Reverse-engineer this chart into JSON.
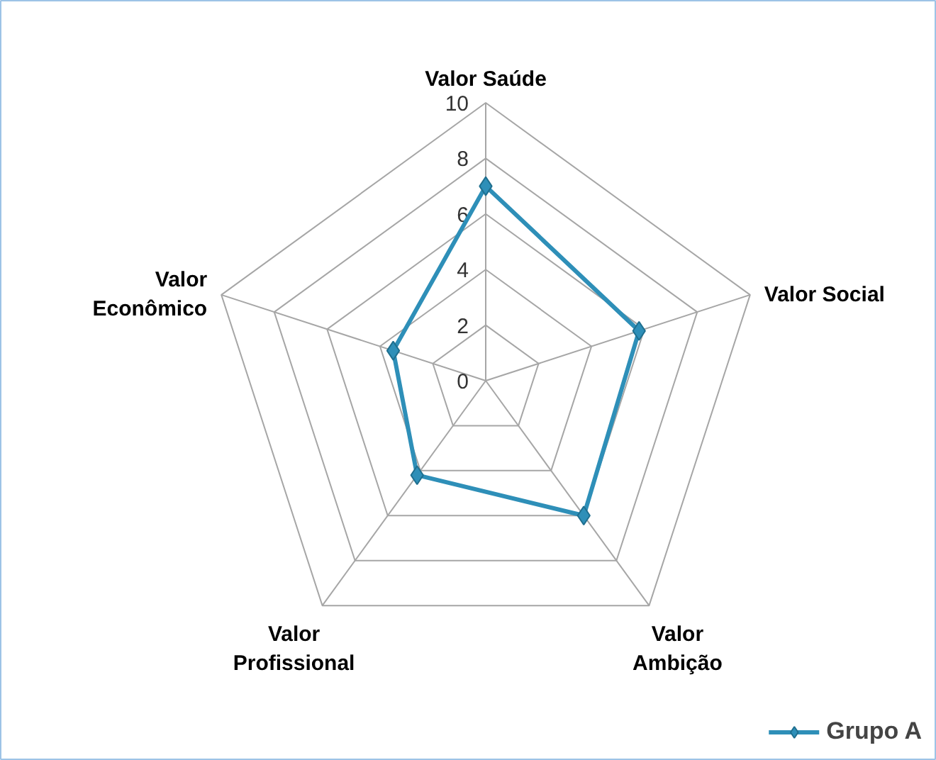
{
  "chart_data": {
    "type": "radar",
    "categories": [
      "Valor Saúde",
      "Valor Social",
      "Valor\nAmbição",
      "Valor\nProfissional",
      "Valor\nEconômico"
    ],
    "series": [
      {
        "name": "Grupo A",
        "color": "#2e8fb8",
        "values": [
          7,
          5.8,
          6,
          4.2,
          3.5
        ]
      }
    ],
    "ylim": [
      0,
      10
    ],
    "yticks": [
      0,
      2,
      4,
      6,
      8,
      10
    ],
    "marker": "diamond",
    "legend": "bottom right",
    "grid": true
  }
}
